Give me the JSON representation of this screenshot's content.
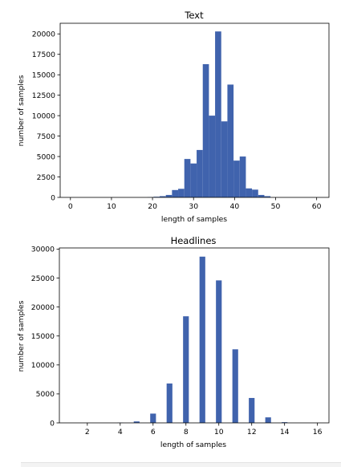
{
  "chart_data": [
    {
      "type": "bar",
      "title": "Text",
      "xlabel": "length of samples",
      "ylabel": "number of samples",
      "xlim": [
        -2.5,
        63
      ],
      "ylim": [
        0,
        21300
      ],
      "xticks": [
        0,
        10,
        20,
        30,
        40,
        50,
        60
      ],
      "yticks": [
        0,
        2500,
        5000,
        7500,
        10000,
        12500,
        15000,
        17500,
        20000
      ],
      "bar_width": 1.5,
      "color": "#4063ad",
      "x": [
        19.5,
        21,
        22.5,
        24,
        25.5,
        27,
        28.5,
        30,
        31.5,
        33,
        34.5,
        36,
        37.5,
        39,
        40.5,
        42,
        43.5,
        45,
        46.5,
        48
      ],
      "values": [
        30,
        80,
        150,
        300,
        900,
        1050,
        4700,
        4150,
        5800,
        16300,
        10000,
        20300,
        9300,
        13800,
        4500,
        5000,
        1100,
        950,
        300,
        150
      ]
    },
    {
      "type": "bar",
      "title": "Headlines",
      "xlabel": "length of samples",
      "ylabel": "number of samples",
      "xlim": [
        0.3,
        16.7
      ],
      "ylim": [
        0,
        30200
      ],
      "xticks": [
        2,
        4,
        6,
        8,
        10,
        12,
        14,
        16
      ],
      "yticks": [
        0,
        5000,
        10000,
        15000,
        20000,
        25000,
        30000
      ],
      "bar_width": 0.35,
      "color": "#4063ad",
      "x": [
        4,
        5,
        6,
        7,
        8,
        9,
        10,
        11,
        12,
        13,
        14
      ],
      "values": [
        30,
        250,
        1600,
        6800,
        18400,
        28700,
        24600,
        12700,
        4300,
        950,
        120
      ]
    }
  ]
}
